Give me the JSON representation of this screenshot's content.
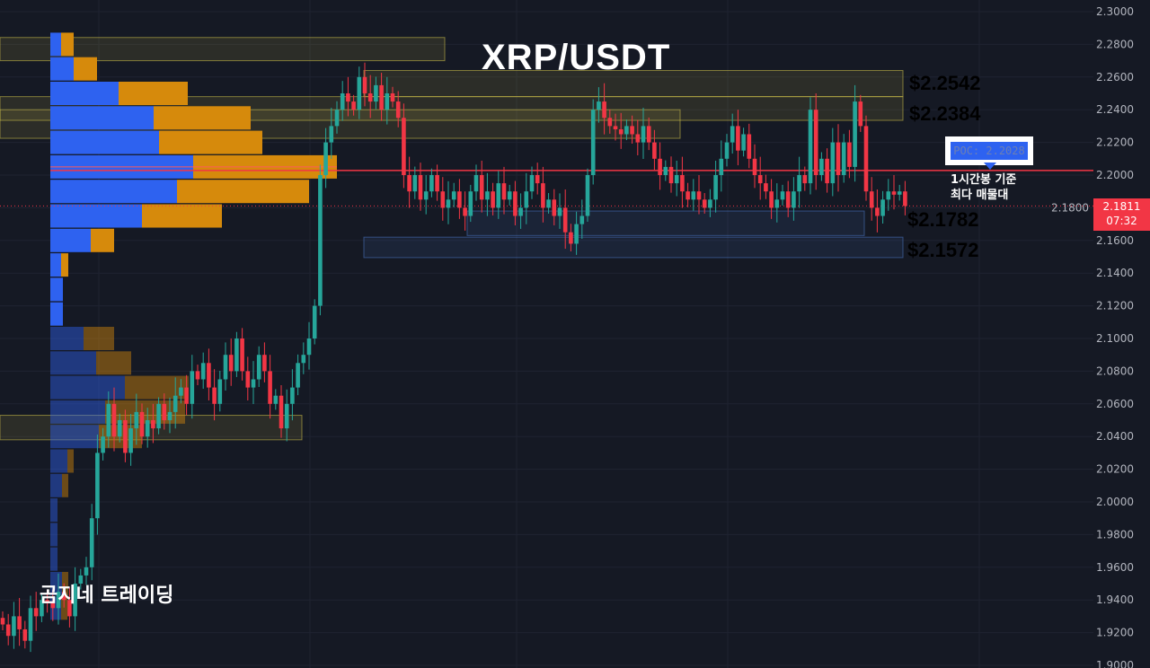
{
  "title": "XRP/USDT",
  "watermark": "곰지네 트레이딩",
  "poc": {
    "label": "POC: 2.2028",
    "price": 2.2028,
    "note_line1": "1시간봉 기준",
    "note_line2": "최다 매물대",
    "line_color": "#f23645"
  },
  "current_price": {
    "price": "2.1811",
    "countdown": "07:32",
    "value": 2.1811
  },
  "levels": [
    {
      "label": "$2.2542",
      "color": "#f5b800"
    },
    {
      "label": "$2.2384",
      "color": "#f5b800"
    },
    {
      "label": "$2.1782",
      "color": "#29a8e8"
    },
    {
      "label": "$2.1572",
      "color": "#29a8e8"
    }
  ],
  "colors": {
    "up": "#26a69a",
    "down": "#f23645",
    "buy_volume": "#2e62f0",
    "sell_volume": "#d68a0c",
    "background": "#151924"
  },
  "chart_data": {
    "type": "candlestick",
    "title": "XRP/USDT",
    "y_axis": {
      "ticks": [
        "2.3000",
        "2.2800",
        "2.2600",
        "2.2400",
        "2.2200",
        "2.2000",
        "2.1800",
        "2.1600",
        "2.1400",
        "2.1200",
        "2.1000",
        "2.0800",
        "2.0600",
        "2.0400",
        "2.0200",
        "2.0000",
        "1.9800",
        "1.9600",
        "1.9400",
        "1.9200",
        "1.9000"
      ],
      "range": [
        1.9,
        2.3
      ],
      "position": "right"
    },
    "grid": true,
    "closes": [
      1.925,
      1.918,
      1.93,
      1.922,
      1.915,
      1.935,
      1.93,
      1.94,
      1.938,
      1.935,
      1.945,
      1.94,
      1.93,
      1.95,
      1.955,
      1.96,
      1.99,
      2.03,
      2.04,
      2.06,
      2.04,
      2.05,
      2.03,
      2.045,
      2.055,
      2.04,
      2.05,
      2.045,
      2.06,
      2.05,
      2.055,
      2.065,
      2.07,
      2.06,
      2.08,
      2.075,
      2.085,
      2.07,
      2.06,
      2.075,
      2.09,
      2.08,
      2.1,
      2.08,
      2.07,
      2.075,
      2.09,
      2.08,
      2.06,
      2.065,
      2.045,
      2.06,
      2.07,
      2.085,
      2.09,
      2.1,
      2.12,
      2.2,
      2.22,
      2.23,
      2.24,
      2.25,
      2.245,
      2.24,
      2.26,
      2.25,
      2.245,
      2.255,
      2.24,
      2.25,
      2.245,
      2.235,
      2.2,
      2.19,
      2.2,
      2.185,
      2.19,
      2.2,
      2.19,
      2.18,
      2.185,
      2.19,
      2.18,
      2.175,
      2.19,
      2.2,
      2.185,
      2.19,
      2.18,
      2.195,
      2.185,
      2.19,
      2.175,
      2.18,
      2.19,
      2.2,
      2.195,
      2.18,
      2.185,
      2.175,
      2.18,
      2.165,
      2.158,
      2.17,
      2.175,
      2.2,
      2.24,
      2.245,
      2.235,
      2.23,
      2.228,
      2.225,
      2.23,
      2.225,
      2.22,
      2.23,
      2.22,
      2.21,
      2.2,
      2.205,
      2.195,
      2.2,
      2.19,
      2.185,
      2.19,
      2.185,
      2.18,
      2.185,
      2.2,
      2.21,
      2.22,
      2.23,
      2.215,
      2.225,
      2.21,
      2.2,
      2.195,
      2.19,
      2.18,
      2.185,
      2.19,
      2.18,
      2.19,
      2.2,
      2.195,
      2.24,
      2.2,
      2.21,
      2.195,
      2.22,
      2.2,
      2.22,
      2.205,
      2.245,
      2.23,
      2.19,
      2.18,
      2.175,
      2.185,
      2.19,
      2.188,
      2.19,
      2.1811
    ],
    "volume_profile": {
      "prices": [
        2.28,
        2.265,
        2.25,
        2.235,
        2.22,
        2.205,
        2.19,
        2.175,
        2.16,
        2.145,
        2.13,
        2.115,
        2.1,
        2.085,
        2.07,
        2.055,
        2.04,
        2.025,
        2.01,
        1.995,
        1.98,
        1.965,
        1.95,
        1.935
      ],
      "buy": [
        12,
        26,
        76,
        115,
        121,
        159,
        141,
        102,
        45,
        12,
        14,
        14,
        37,
        51,
        83,
        61,
        54,
        19,
        13,
        8,
        8,
        8,
        13,
        12
      ],
      "sell": [
        14,
        26,
        77,
        108,
        115,
        160,
        147,
        89,
        26,
        8,
        0,
        0,
        34,
        39,
        71,
        89,
        48,
        7,
        7,
        0,
        0,
        0,
        7,
        7
      ]
    },
    "zones": [
      {
        "top": 2.2842,
        "bottom": 2.27,
        "color": "#d4c44a",
        "extent": "left"
      },
      {
        "top": 2.264,
        "bottom": 2.248,
        "color": "#d4c44a",
        "extent": "mid-right",
        "label_index": 0
      },
      {
        "top": 2.248,
        "bottom": 2.2335,
        "color": "#d4c44a",
        "extent": "full",
        "label_index": 1
      },
      {
        "top": 2.24,
        "bottom": 2.2225,
        "color": "#d4c44a",
        "extent": "left-mid"
      },
      {
        "top": 2.178,
        "bottom": 2.163,
        "color": "#4a78c8",
        "extent": "mid",
        "label_index": 2
      },
      {
        "top": 2.162,
        "bottom": 2.1495,
        "color": "#4a78c8",
        "extent": "mid-right",
        "label_index": 3
      },
      {
        "top": 2.053,
        "bottom": 2.038,
        "color": "#d4c44a",
        "extent": "left-lower"
      }
    ]
  }
}
